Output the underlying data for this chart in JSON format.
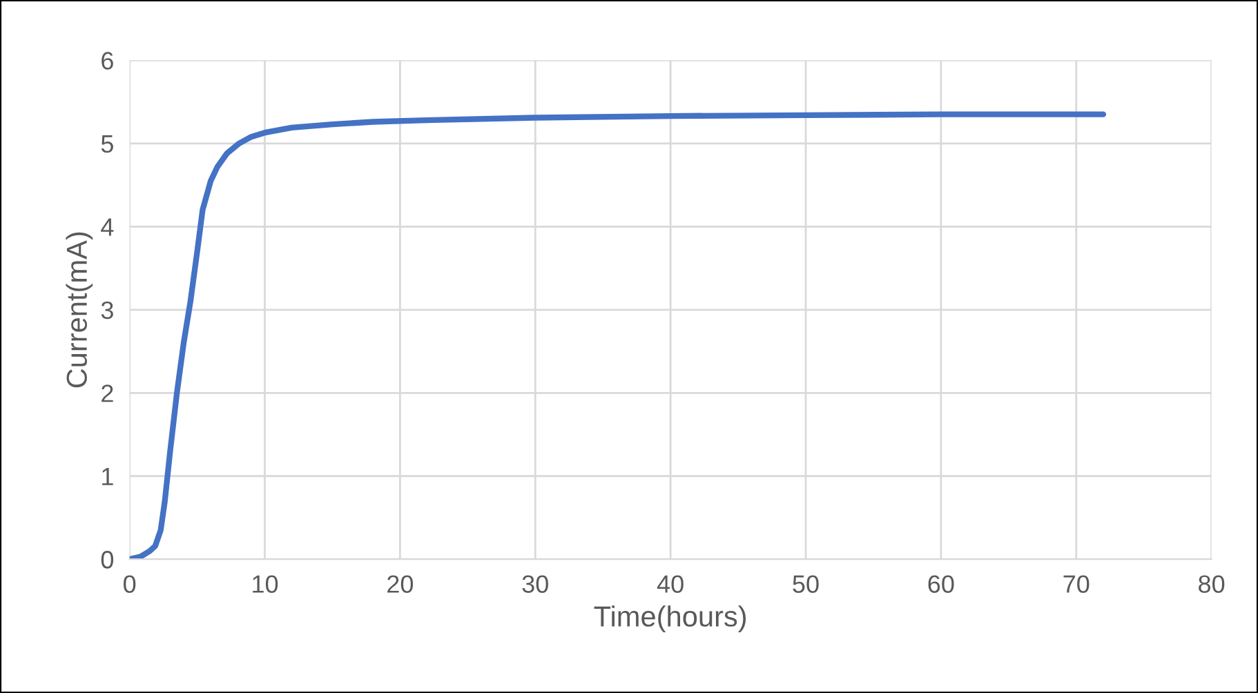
{
  "chart_data": {
    "type": "line",
    "xlabel": "Time(hours)",
    "ylabel": "Current(mA)",
    "series": [
      {
        "color": "#4472c4",
        "x": [
          0,
          0.8,
          1.5,
          1.9,
          2.3,
          2.6,
          3.0,
          3.5,
          4.0,
          4.5,
          5.0,
          5.4,
          6.0,
          6.5,
          7.2,
          8.1,
          9.0,
          10,
          12,
          15,
          18,
          22,
          30,
          40,
          50,
          60,
          72
        ],
        "values": [
          0,
          0.03,
          0.1,
          0.16,
          0.35,
          0.69,
          1.3,
          2.0,
          2.6,
          3.1,
          3.7,
          4.2,
          4.55,
          4.72,
          4.88,
          5.0,
          5.08,
          5.13,
          5.19,
          5.23,
          5.26,
          5.28,
          5.31,
          5.33,
          5.34,
          5.35,
          5.35
        ]
      }
    ],
    "xlim": [
      0,
      80
    ],
    "xticks": [
      0,
      10,
      20,
      30,
      40,
      50,
      60,
      70,
      80
    ],
    "ylim": [
      0,
      6
    ],
    "yticks": [
      0,
      1,
      2,
      3,
      4,
      5,
      6
    ],
    "grid": true,
    "legend": false,
    "marker": "none",
    "line_style": "solid"
  }
}
